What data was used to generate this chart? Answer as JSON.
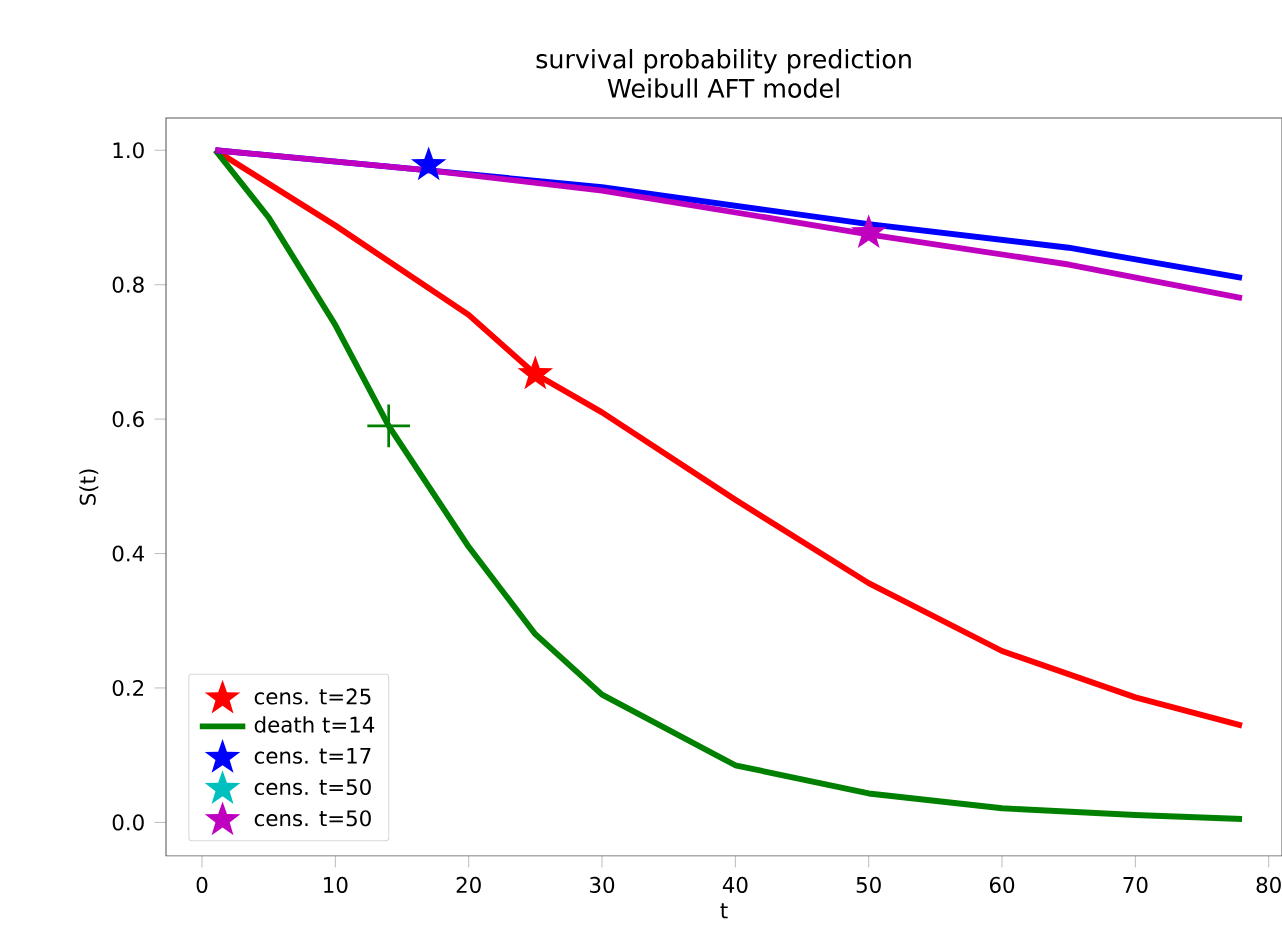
{
  "chart_data": {
    "type": "line",
    "title": "survival probability prediction",
    "subtitle": "Weibull AFT model",
    "xlabel": "t",
    "ylabel": "S(t)",
    "xlim": [
      -2.7,
      81
    ],
    "ylim": [
      -0.05,
      1.048
    ],
    "xticks": [
      0,
      10,
      20,
      30,
      40,
      50,
      60,
      70,
      80
    ],
    "yticks": [
      {
        "value": 0,
        "label": "0.0"
      },
      0.2,
      0.4,
      0.6,
      0.8,
      {
        "value": 1,
        "label": "1.0"
      }
    ],
    "grid": false,
    "legend": "bottom left",
    "series": [
      {
        "color": "#ff0000",
        "x": [
          1,
          10,
          20,
          25,
          30,
          40,
          50,
          60,
          70,
          78
        ],
        "values": [
          1.0,
          0.888,
          0.755,
          0.667,
          0.61,
          0.48,
          0.356,
          0.255,
          0.186,
          0.144
        ]
      },
      {
        "type": "scatter",
        "name": "cens. t=25",
        "color": "#ff0000",
        "marker": "star",
        "x": [
          25
        ],
        "values": [
          0.667
        ]
      },
      {
        "name": "death t=14",
        "color": "#008000",
        "x": [
          1,
          5,
          10,
          14,
          20,
          25,
          30,
          40,
          50,
          60,
          70,
          78
        ],
        "values": [
          1.0,
          0.9,
          0.74,
          0.59,
          0.41,
          0.28,
          0.19,
          0.085,
          0.043,
          0.021,
          0.011,
          0.005
        ]
      },
      {
        "type": "scatter",
        "color": "#008000",
        "marker": "cross",
        "x": [
          14
        ],
        "values": [
          0.59
        ]
      },
      {
        "color": "#0000ff",
        "x": [
          1,
          17,
          30,
          50,
          65,
          78
        ],
        "values": [
          1.0,
          0.97,
          0.945,
          0.89,
          0.855,
          0.81
        ]
      },
      {
        "type": "scatter",
        "name": "cens. t=17",
        "color": "#0000ff",
        "marker": "star",
        "x": [
          17
        ],
        "values": [
          0.978
        ]
      },
      {
        "type": "scatter",
        "name": "cens. t=50",
        "color": "#00bfbf",
        "marker": "star",
        "values": [
          null
        ]
      },
      {
        "color": "#bf00bf",
        "x": [
          1,
          17,
          30,
          50,
          65,
          78
        ],
        "values": [
          1.0,
          0.97,
          0.94,
          0.875,
          0.83,
          0.78
        ]
      },
      {
        "type": "scatter",
        "name": "cens. t=50",
        "color": "#bf00bf",
        "marker": "star",
        "x": [
          50
        ],
        "values": [
          0.877
        ]
      }
    ]
  }
}
